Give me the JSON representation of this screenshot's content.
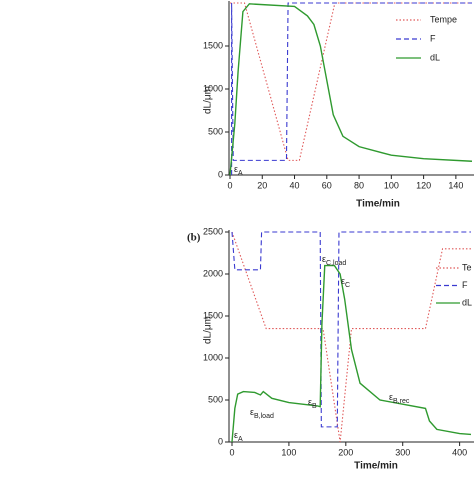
{
  "chart_data": [
    {
      "type": "line",
      "y_label": "dL/μm",
      "x_label": "Time/min",
      "xlim": [
        0,
        150
      ],
      "xticks": [
        0,
        20,
        40,
        60,
        80,
        100,
        120,
        140
      ],
      "ylim": [
        0,
        2000
      ],
      "yticks": [
        0,
        500,
        1000,
        1500
      ],
      "series": [
        {
          "name": "Tempe",
          "color": "#e05a5a",
          "style": "dotted",
          "x": [
            0,
            9,
            36,
            43,
            65,
            150
          ],
          "values": [
            2000,
            2000,
            170,
            170,
            2000,
            2000
          ]
        },
        {
          "name": "F",
          "color": "#3a3ad0",
          "style": "dashed",
          "x": [
            1,
            1,
            2,
            35,
            36,
            150
          ],
          "values": [
            0,
            2000,
            170,
            170,
            2000,
            2000
          ]
        },
        {
          "name": "dL",
          "color": "#2f9a2f",
          "style": "solid",
          "x": [
            0,
            3,
            5,
            8,
            12,
            40,
            48,
            52,
            56,
            60,
            64,
            70,
            80,
            100,
            120,
            150
          ],
          "values": [
            0,
            600,
            1200,
            1900,
            1990,
            1960,
            1850,
            1750,
            1500,
            1100,
            700,
            450,
            330,
            230,
            190,
            160
          ]
        }
      ],
      "annotations": [
        {
          "text": "ε",
          "sub": "A"
        }
      ]
    },
    {
      "type": "line",
      "panel": "(b)",
      "y_label": "dL/μm",
      "x_label": "Time/min",
      "xlim": [
        0,
        420
      ],
      "xticks": [
        0,
        100,
        200,
        300,
        400
      ],
      "ylim": [
        0,
        2500
      ],
      "yticks": [
        0,
        500,
        1000,
        1500,
        2000,
        2500
      ],
      "series": [
        {
          "name": "Te",
          "color": "#e05a5a",
          "style": "dotted",
          "x": [
            0,
            60,
            160,
            190,
            210,
            340,
            370,
            420
          ],
          "values": [
            2500,
            1350,
            1350,
            0,
            1350,
            1350,
            2300,
            2300
          ]
        },
        {
          "name": "F",
          "color": "#3a3ad0",
          "style": "dashed",
          "x": [
            0,
            5,
            50,
            52,
            155,
            157,
            185,
            188,
            420
          ],
          "values": [
            2500,
            2050,
            2050,
            2500,
            2500,
            180,
            180,
            2500,
            2500
          ]
        },
        {
          "name": "dL",
          "color": "#2f9a2f",
          "style": "solid",
          "x": [
            0,
            5,
            10,
            20,
            40,
            50,
            55,
            70,
            100,
            150,
            155,
            158,
            163,
            180,
            190,
            198,
            210,
            225,
            260,
            300,
            340,
            347,
            360,
            400,
            420
          ],
          "values": [
            0,
            400,
            570,
            600,
            590,
            560,
            600,
            520,
            470,
            430,
            420,
            1400,
            2100,
            2100,
            2000,
            1700,
            1100,
            700,
            500,
            450,
            400,
            250,
            150,
            100,
            90
          ]
        }
      ],
      "annotations": [
        {
          "text": "ε",
          "sub": "A"
        },
        {
          "text": "ε",
          "sub": "B,load"
        },
        {
          "text": "ε",
          "sub": "B"
        },
        {
          "text": "ε",
          "sub": "C,load"
        },
        {
          "text": "ε",
          "sub": "C"
        },
        {
          "text": "ε",
          "sub": "B,rec"
        }
      ]
    }
  ]
}
